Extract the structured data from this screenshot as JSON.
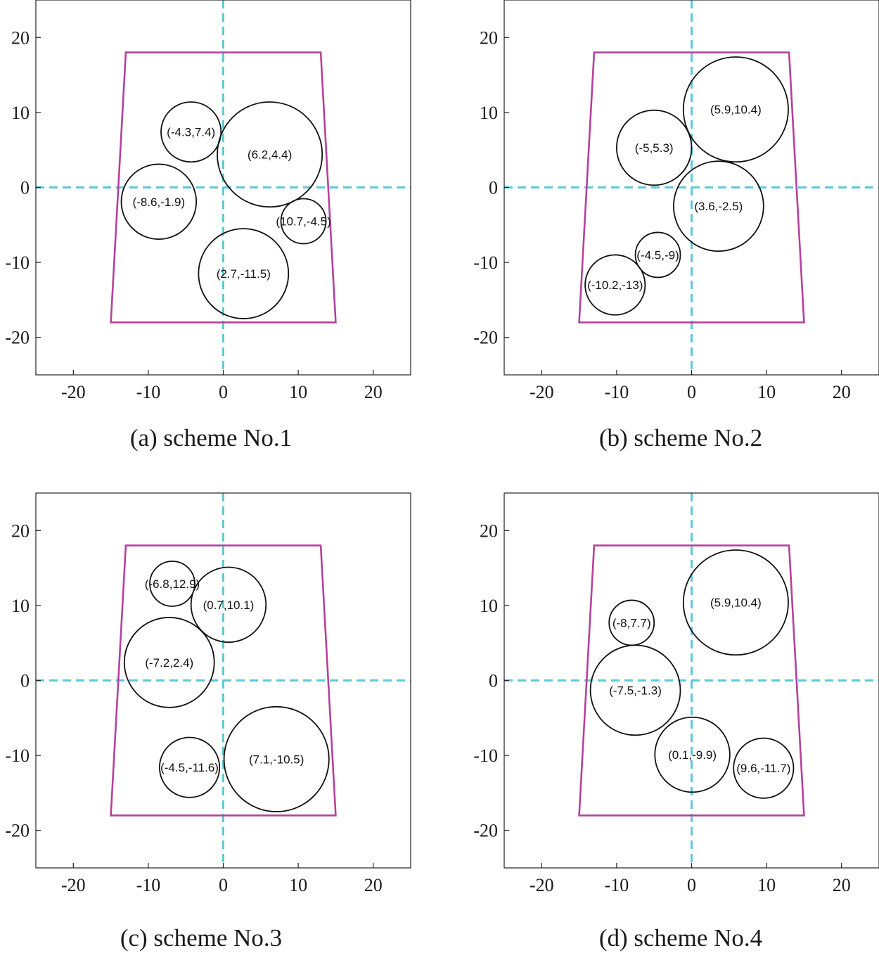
{
  "colors": {
    "boundary": "#b5419c",
    "axis": "#5ccad8",
    "circle": "#111111",
    "frame": "#222222"
  },
  "chart_data": [
    {
      "type": "scatter",
      "caption": "(a) scheme No.1",
      "xlim": [
        -25,
        25
      ],
      "ylim": [
        -25,
        25
      ],
      "xticks": [
        -20,
        -10,
        0,
        10,
        20
      ],
      "yticks": [
        20,
        10,
        0,
        -10,
        -20
      ],
      "xtick_labels": [
        "-20",
        "-10",
        "0",
        "10",
        "20"
      ],
      "ytick_labels": [
        "20",
        "10",
        "0",
        "-10",
        "-20"
      ],
      "boundary": [
        [
          -13,
          18
        ],
        [
          13,
          18
        ],
        [
          15,
          -18
        ],
        [
          -15,
          -18
        ]
      ],
      "circles": [
        {
          "label": "(-4.3,7.4)",
          "x": -4.3,
          "y": 7.4,
          "r": 4.0
        },
        {
          "label": "(6.2,4.4)",
          "x": 6.2,
          "y": 4.4,
          "r": 7.0
        },
        {
          "label": "(-8.6,-1.9)",
          "x": -8.6,
          "y": -1.9,
          "r": 5.0
        },
        {
          "label": "(10.7,-4.5)",
          "x": 10.7,
          "y": -4.5,
          "r": 3.0
        },
        {
          "label": "(2.7,-11.5)",
          "x": 2.7,
          "y": -11.5,
          "r": 6.0
        }
      ]
    },
    {
      "type": "scatter",
      "caption": "(b) scheme No.2",
      "xlim": [
        -25,
        25
      ],
      "ylim": [
        -25,
        25
      ],
      "xticks": [
        -20,
        -10,
        0,
        10,
        20
      ],
      "yticks": [
        20,
        10,
        0,
        -10,
        -20
      ],
      "xtick_labels": [
        "-20",
        "-10",
        "0",
        "10",
        "20"
      ],
      "ytick_labels": [
        "20",
        "10",
        "0",
        "-10",
        "-20"
      ],
      "boundary": [
        [
          -13,
          18
        ],
        [
          13,
          18
        ],
        [
          15,
          -18
        ],
        [
          -15,
          -18
        ]
      ],
      "circles": [
        {
          "label": "(5.9,10.4)",
          "x": 5.9,
          "y": 10.4,
          "r": 7.0
        },
        {
          "label": "(-5,5.3)",
          "x": -5.0,
          "y": 5.3,
          "r": 5.0
        },
        {
          "label": "(3.6,-2.5)",
          "x": 3.6,
          "y": -2.5,
          "r": 6.0
        },
        {
          "label": "(-4.5,-9)",
          "x": -4.5,
          "y": -9.0,
          "r": 3.0
        },
        {
          "label": "(-10.2,-13)",
          "x": -10.2,
          "y": -13.0,
          "r": 4.0
        }
      ]
    },
    {
      "type": "scatter",
      "caption": "(c) scheme No.3",
      "xlim": [
        -25,
        25
      ],
      "ylim": [
        -25,
        25
      ],
      "xticks": [
        -20,
        -10,
        0,
        10,
        20
      ],
      "yticks": [
        20,
        10,
        0,
        -10,
        -20
      ],
      "xtick_labels": [
        "-20",
        "-10",
        "0",
        "10",
        "20"
      ],
      "ytick_labels": [
        "20",
        "10",
        "0",
        "-10",
        "-20"
      ],
      "boundary": [
        [
          -13,
          18
        ],
        [
          13,
          18
        ],
        [
          15,
          -18
        ],
        [
          -15,
          -18
        ]
      ],
      "circles": [
        {
          "label": "(-6.8,12.9)",
          "x": -6.8,
          "y": 12.9,
          "r": 3.0
        },
        {
          "label": "(0.7,10.1)",
          "x": 0.7,
          "y": 10.1,
          "r": 5.0
        },
        {
          "label": "(-7.2,2.4)",
          "x": -7.2,
          "y": 2.4,
          "r": 6.0
        },
        {
          "label": "(-4.5,-11.6)",
          "x": -4.5,
          "y": -11.6,
          "r": 4.0
        },
        {
          "label": "(7.1,-10.5)",
          "x": 7.1,
          "y": -10.5,
          "r": 7.0
        }
      ]
    },
    {
      "type": "scatter",
      "caption": "(d) scheme No.4",
      "xlim": [
        -25,
        25
      ],
      "ylim": [
        -25,
        25
      ],
      "xticks": [
        -20,
        -10,
        0,
        10,
        20
      ],
      "yticks": [
        20,
        10,
        0,
        -10,
        -20
      ],
      "xtick_labels": [
        "-20",
        "-10",
        "0",
        "10",
        "20"
      ],
      "ytick_labels": [
        "20",
        "10",
        "0",
        "-10",
        "-20"
      ],
      "boundary": [
        [
          -13,
          18
        ],
        [
          13,
          18
        ],
        [
          15,
          -18
        ],
        [
          -15,
          -18
        ]
      ],
      "circles": [
        {
          "label": "(5.9,10.4)",
          "x": 5.9,
          "y": 10.4,
          "r": 7.0
        },
        {
          "label": "(-8,7.7)",
          "x": -8.0,
          "y": 7.7,
          "r": 3.0
        },
        {
          "label": "(-7.5,-1.3)",
          "x": -7.5,
          "y": -1.3,
          "r": 6.0
        },
        {
          "label": "(0.1,-9.9)",
          "x": 0.1,
          "y": -9.9,
          "r": 5.0
        },
        {
          "label": "(9.6,-11.7)",
          "x": 9.6,
          "y": -11.7,
          "r": 4.0
        }
      ]
    }
  ]
}
